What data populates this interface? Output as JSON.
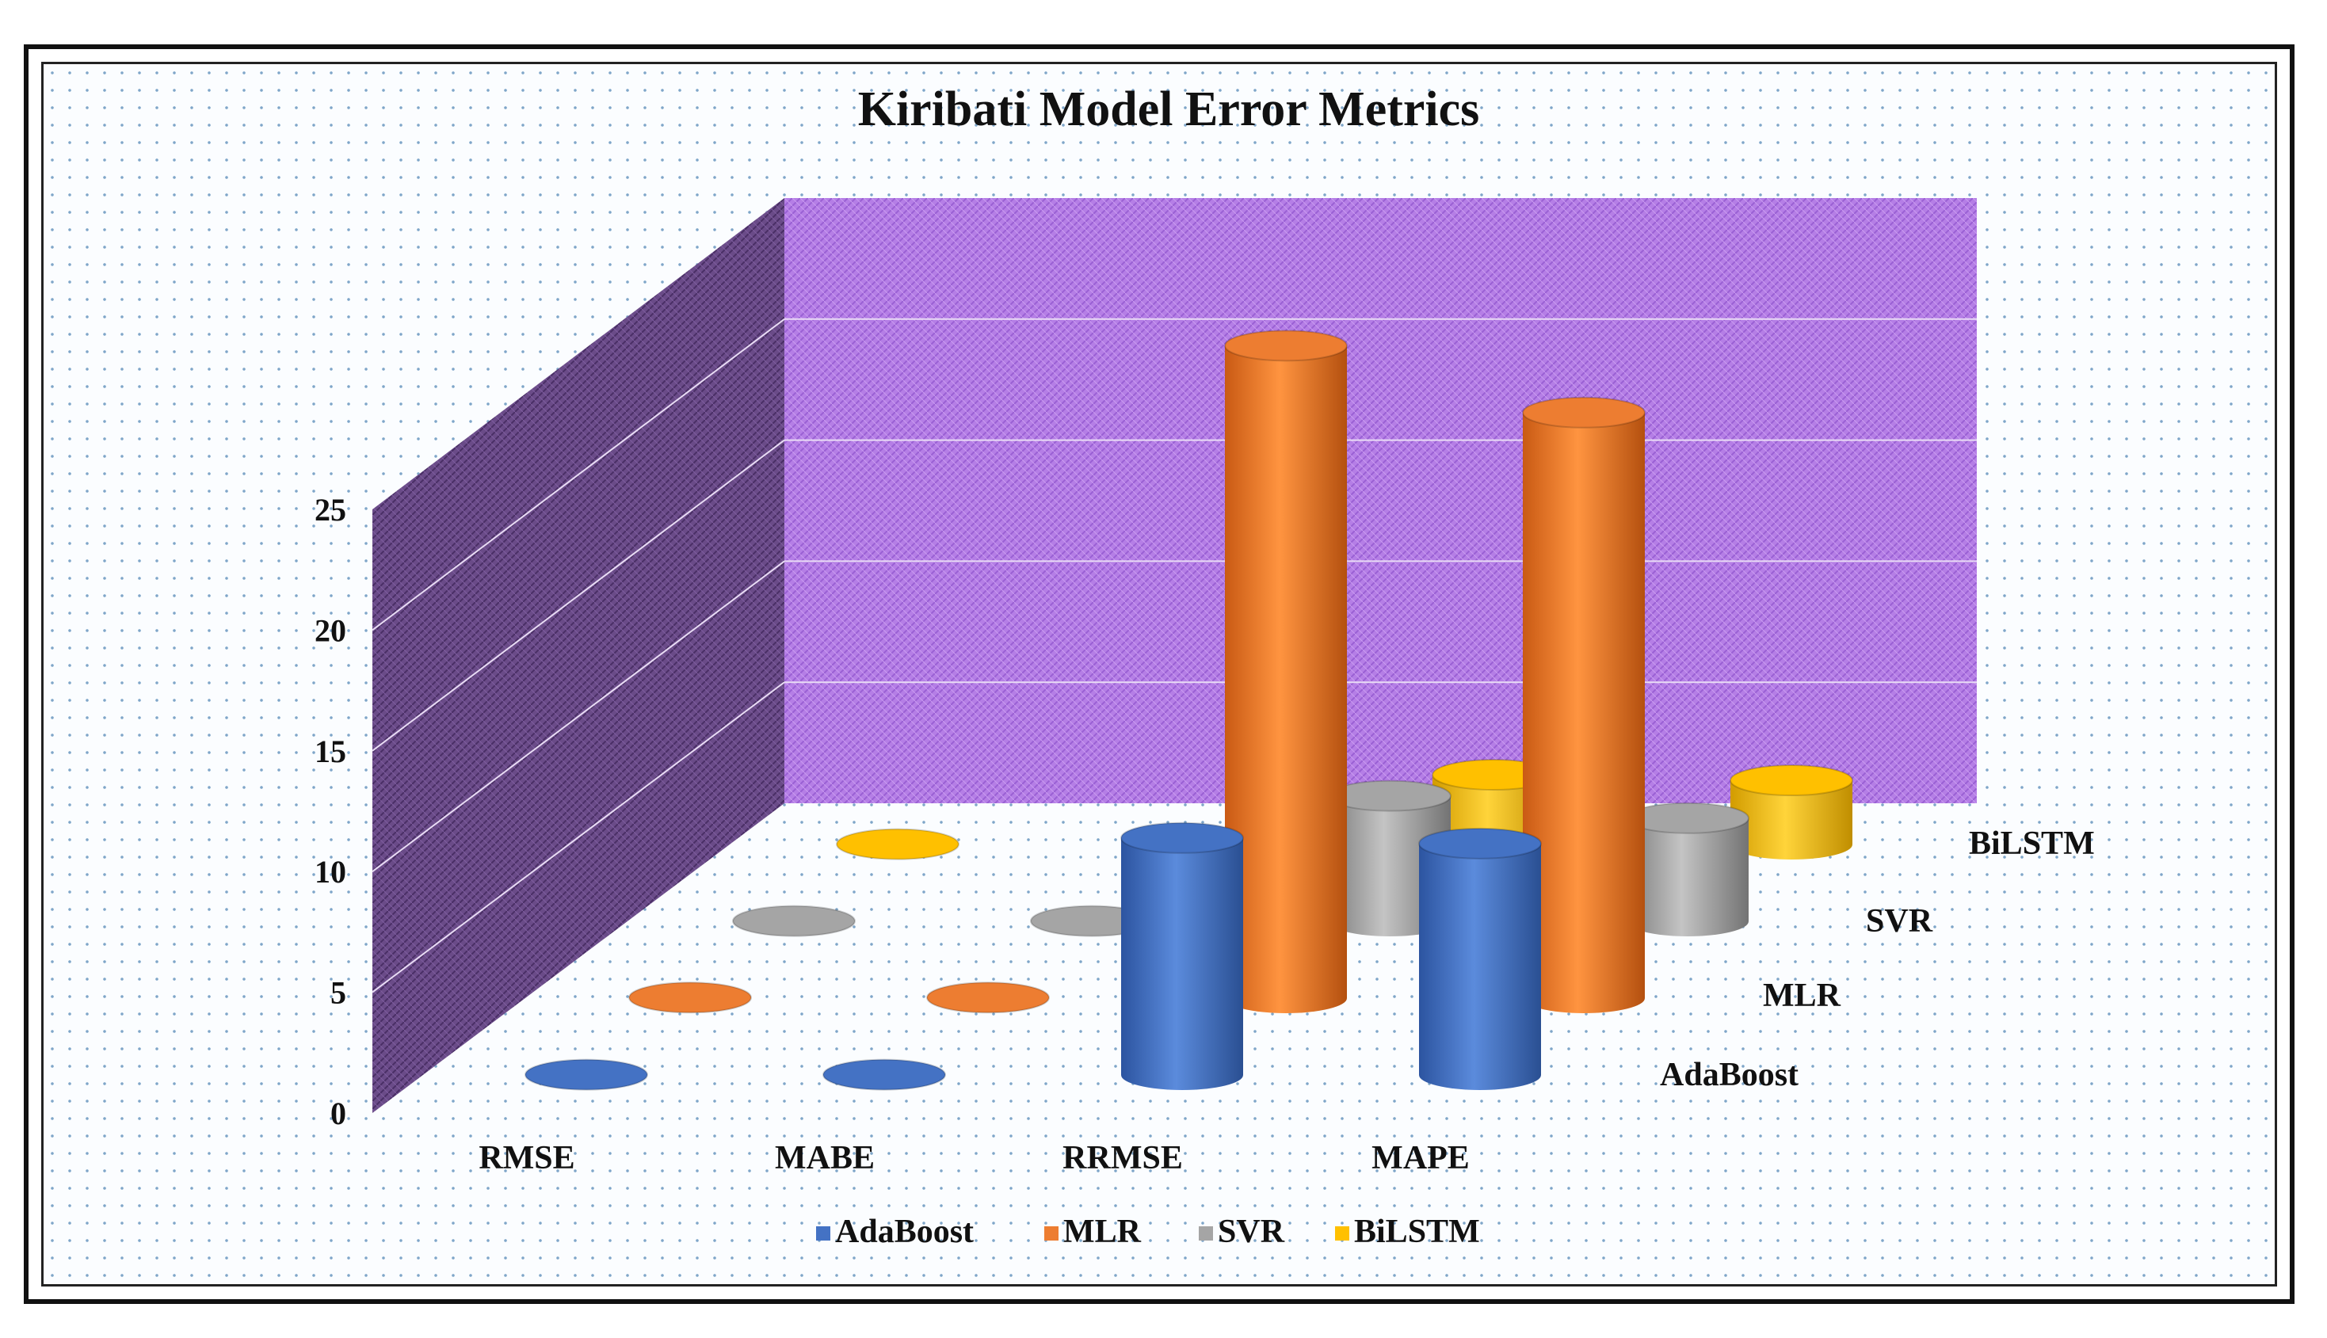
{
  "chart_data": {
    "type": "bar",
    "title": "Kiribati Model Error Metrics",
    "categories": [
      "RMSE",
      "MABE",
      "RRMSE",
      "MAPE"
    ],
    "series": [
      {
        "name": "AdaBoost",
        "values": [
          0.01,
          0.01,
          8.5,
          8.3
        ],
        "color": "#4472C4"
      },
      {
        "name": "MLR",
        "values": [
          0.02,
          0.02,
          23.4,
          21.0
        ],
        "color": "#ED7D31"
      },
      {
        "name": "SVR",
        "values": [
          0.01,
          0.01,
          4.5,
          3.7
        ],
        "color": "#A5A5A5"
      },
      {
        "name": "BiLSTM",
        "values": [
          0.01,
          0.01,
          2.5,
          2.3
        ],
        "color": "#FFC000"
      }
    ],
    "y_ticks": [
      "0",
      "5",
      "10",
      "15",
      "20",
      "25"
    ],
    "ylim": [
      0,
      25
    ],
    "gridlines": true,
    "legend_position": "bottom"
  }
}
